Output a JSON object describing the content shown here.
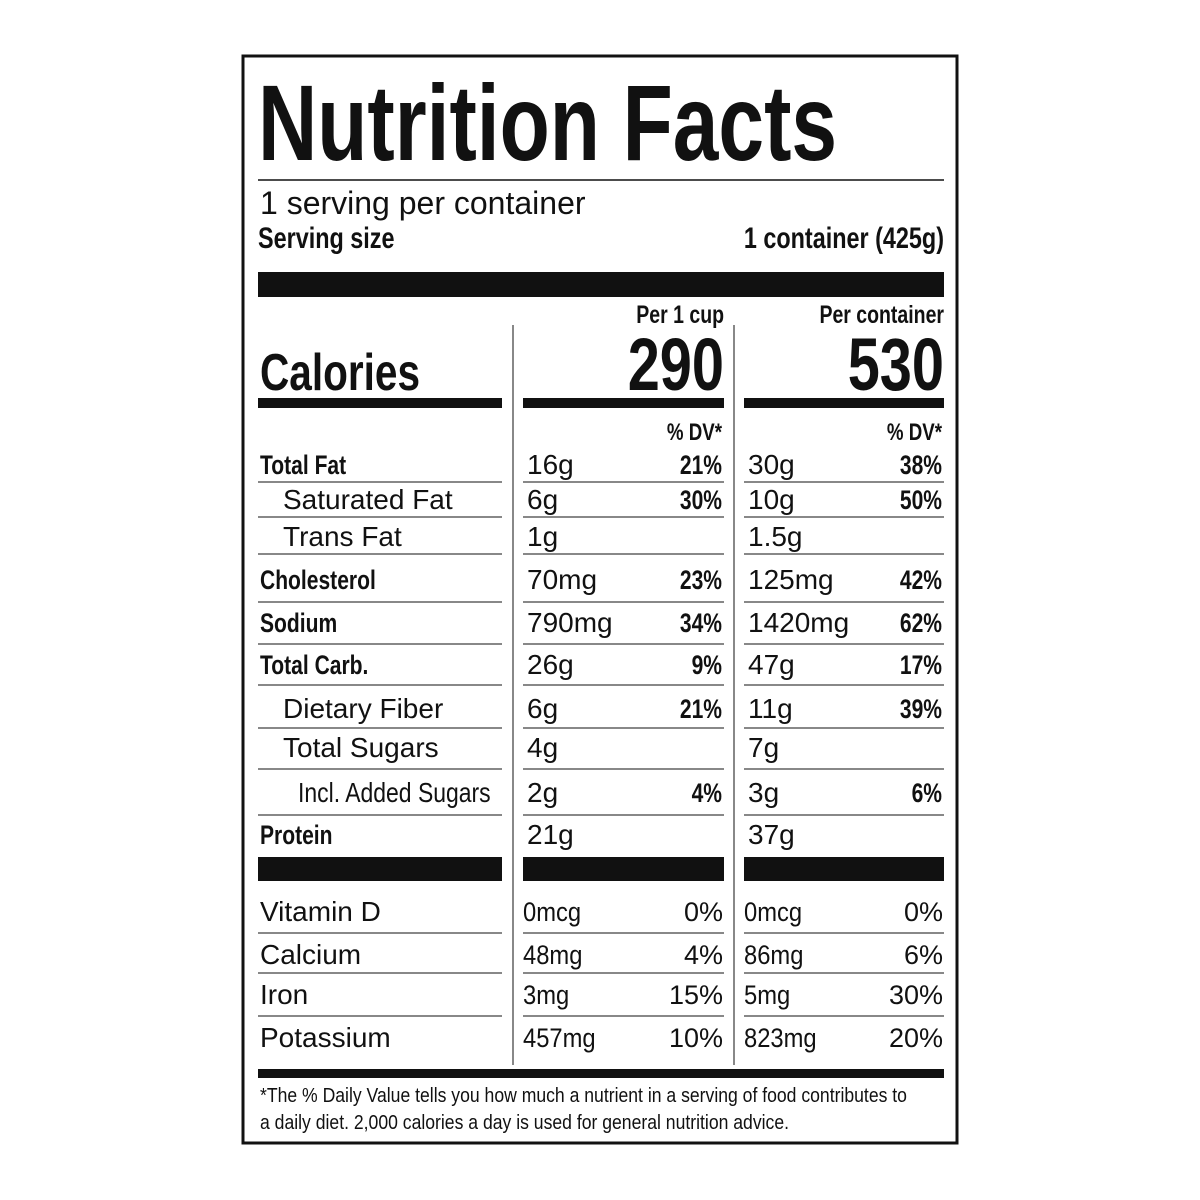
{
  "title": "Nutrition Facts",
  "servings": "1 serving per container",
  "serving_size": {
    "label": "Serving size",
    "value": "1 container (425g)"
  },
  "calories_label": "Calories",
  "columns": [
    {
      "header": "Per 1 cup",
      "calories": "290",
      "dv_header": "% DV*"
    },
    {
      "header": "Per container",
      "calories": "530",
      "dv_header": "% DV*"
    }
  ],
  "nutrients": [
    {
      "name": "Total Fat",
      "bold": true,
      "indent": 0,
      "values": [
        [
          "16g",
          "21%"
        ],
        [
          "30g",
          "38%"
        ]
      ]
    },
    {
      "name": "Saturated Fat",
      "bold": false,
      "indent": 1,
      "values": [
        [
          "6g",
          "30%"
        ],
        [
          "10g",
          "50%"
        ]
      ]
    },
    {
      "name": "Trans Fat",
      "bold": false,
      "indent": 1,
      "values": [
        [
          "1g",
          null
        ],
        [
          "1.5g",
          null
        ]
      ]
    },
    {
      "name": "Cholesterol",
      "bold": true,
      "indent": 0,
      "values": [
        [
          "70mg",
          "23%"
        ],
        [
          "125mg",
          "42%"
        ]
      ]
    },
    {
      "name": "Sodium",
      "bold": true,
      "indent": 0,
      "values": [
        [
          "790mg",
          "34%"
        ],
        [
          "1420mg",
          "62%"
        ]
      ]
    },
    {
      "name": "Total Carb.",
      "bold": true,
      "indent": 0,
      "values": [
        [
          "26g",
          "9%"
        ],
        [
          "47g",
          "17%"
        ]
      ]
    },
    {
      "name": "Dietary Fiber",
      "bold": false,
      "indent": 1,
      "values": [
        [
          "6g",
          "21%"
        ],
        [
          "11g",
          "39%"
        ]
      ]
    },
    {
      "name": "Total Sugars",
      "bold": false,
      "indent": 1,
      "values": [
        [
          "4g",
          null
        ],
        [
          "7g",
          null
        ]
      ]
    },
    {
      "name": "Incl. Added Sugars",
      "bold": false,
      "indent": 2,
      "values": [
        [
          "2g",
          "4%"
        ],
        [
          "3g",
          "6%"
        ]
      ]
    },
    {
      "name": "Protein",
      "bold": true,
      "indent": 0,
      "values": [
        [
          "21g",
          null
        ],
        [
          "37g",
          null
        ]
      ]
    }
  ],
  "vitamins": [
    {
      "name": "Vitamin D",
      "values": [
        [
          "0mcg",
          "0%"
        ],
        [
          "0mcg",
          "0%"
        ]
      ]
    },
    {
      "name": "Calcium",
      "values": [
        [
          "48mg",
          "4%"
        ],
        [
          "86mg",
          "6%"
        ]
      ]
    },
    {
      "name": "Iron",
      "values": [
        [
          "3mg",
          "15%"
        ],
        [
          "5mg",
          "30%"
        ]
      ]
    },
    {
      "name": "Potassium",
      "values": [
        [
          "457mg",
          "10%"
        ],
        [
          "823mg",
          "20%"
        ]
      ]
    }
  ],
  "footnote": [
    "*The % Daily Value tells you how much a nutrient in a serving of food contributes to",
    "a daily diet. 2,000 calories a day is used for general nutrition advice."
  ]
}
